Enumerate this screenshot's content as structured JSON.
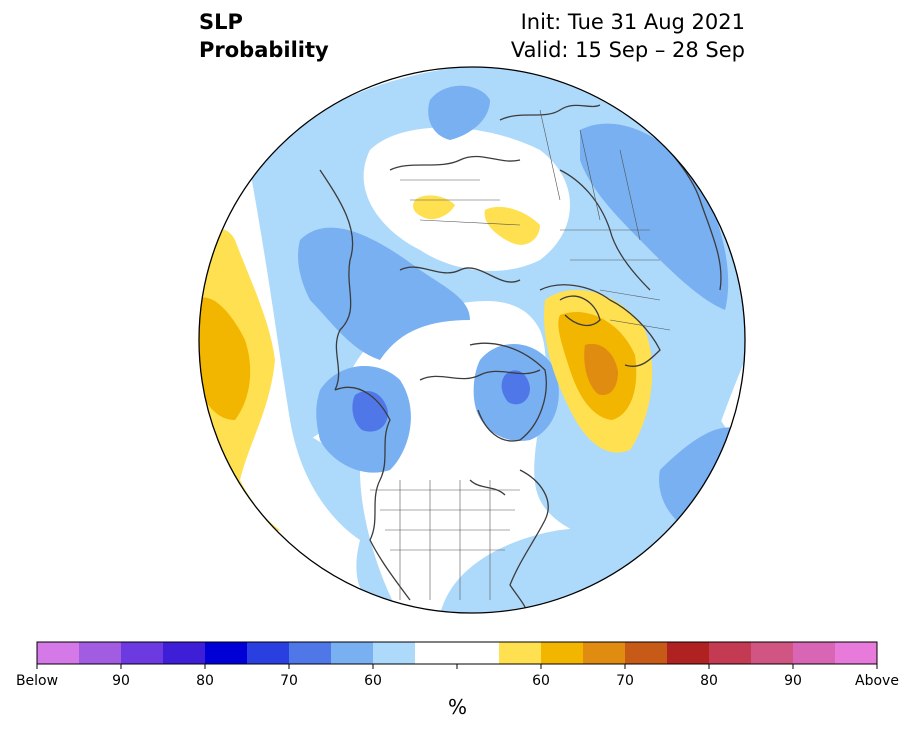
{
  "header": {
    "title_line1": "SLP",
    "title_line2": "Probability",
    "init": "Init: Tue 31 Aug 2021",
    "valid": "Valid: 15 Sep – 28 Sep"
  },
  "colorbar": {
    "colors": [
      "#d679e8",
      "#a25ce2",
      "#6c3ae0",
      "#3f1ed8",
      "#0000d6",
      "#2a3fe0",
      "#5077e8",
      "#78b0f2",
      "#add9fb",
      "#ffffff",
      "#ffffff",
      "#ffe050",
      "#f2b500",
      "#df8c10",
      "#c85a18",
      "#b02222",
      "#c43a52",
      "#d05582",
      "#d866b4",
      "#e87adc"
    ],
    "labels": [
      "Below",
      "90",
      "80",
      "70",
      "60",
      "60",
      "70",
      "80",
      "90",
      "Above"
    ],
    "unit": "%"
  },
  "map": {
    "projection": "north-polar-stereographic",
    "colors": {
      "light_blue": "#add9fb",
      "mid_blue": "#78b0f2",
      "blue": "#5077e8",
      "yellow": "#ffe050",
      "orange": "#f2b500",
      "dark_orange": "#df8c10",
      "coast": "#3c3c3c"
    }
  }
}
